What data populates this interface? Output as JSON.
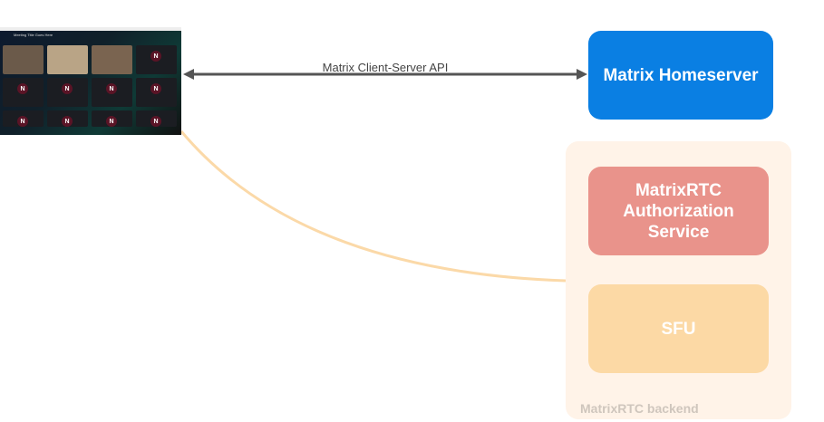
{
  "screenshot": {
    "meeting_title": "Meeting Title Goes Here",
    "avatar_letter": "N"
  },
  "arrow": {
    "label": "Matrix Client-Server API",
    "color": "#555555"
  },
  "homeserver": {
    "label": "Matrix Homeserver",
    "color": "#0a7fe3"
  },
  "backend": {
    "label": "MatrixRTC backend",
    "color": "#fff3e8",
    "auth": {
      "label": "MatrixRTC Authorization Service",
      "color": "#e9938b"
    },
    "sfu": {
      "label": "SFU",
      "color": "#fcd9a5"
    }
  },
  "connector_color": "#fbd9a8"
}
